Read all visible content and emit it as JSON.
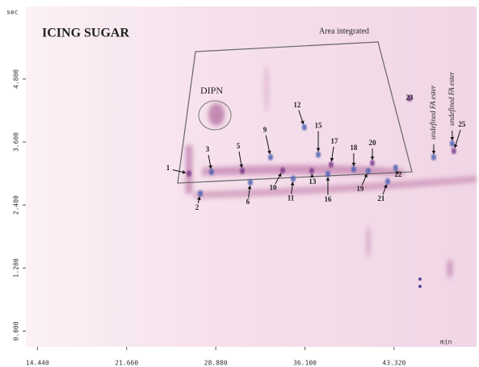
{
  "chart_data": {
    "type": "gcxgc",
    "title": "ICING SUGAR",
    "region_label": "Area integrated",
    "group_label": "DIPN",
    "x_label": "min",
    "y_label": "sec",
    "xlim": [
      13.5,
      50
    ],
    "ylim": [
      -0.3,
      6.15
    ],
    "xticks": [
      {
        "value": 14.44,
        "label": "14.440"
      },
      {
        "value": 21.66,
        "label": "21.660"
      },
      {
        "value": 28.88,
        "label": "28.880"
      },
      {
        "value": 36.1,
        "label": "36.100"
      },
      {
        "value": 43.32,
        "label": "43.320"
      }
    ],
    "yticks": [
      {
        "value": 0,
        "label": "0.000"
      },
      {
        "value": 1.2,
        "label": "1.200"
      },
      {
        "value": 2.4,
        "label": "2.400"
      },
      {
        "value": 3.6,
        "label": "3.600"
      },
      {
        "value": 4.8,
        "label": "4.800"
      }
    ],
    "peaks": [
      {
        "label": "1",
        "x": 26.71,
        "y": 3.0
      },
      {
        "label": "2",
        "x": 27.63,
        "y": 2.62
      },
      {
        "label": "3",
        "x": 28.54,
        "y": 3.03
      },
      {
        "label": "5",
        "x": 31.03,
        "y": 3.05
      },
      {
        "label": "6",
        "x": 31.68,
        "y": 2.83
      },
      {
        "label": "9",
        "x": 33.32,
        "y": 3.31
      },
      {
        "label": "10",
        "x": 34.3,
        "y": 3.06
      },
      {
        "label": "11",
        "x": 35.15,
        "y": 2.9
      },
      {
        "label": "12",
        "x": 36.06,
        "y": 3.88
      },
      {
        "label": "13",
        "x": 36.65,
        "y": 3.05
      },
      {
        "label": "15",
        "x": 37.18,
        "y": 3.36
      },
      {
        "label": "16",
        "x": 37.96,
        "y": 2.99
      },
      {
        "label": "17",
        "x": 38.22,
        "y": 3.17
      },
      {
        "label": "18",
        "x": 40.05,
        "y": 3.08
      },
      {
        "label": "19",
        "x": 41.23,
        "y": 3.05
      },
      {
        "label": "20",
        "x": 41.56,
        "y": 3.2
      },
      {
        "label": "21",
        "x": 42.8,
        "y": 2.85
      },
      {
        "label": "22",
        "x": 43.45,
        "y": 3.11
      },
      {
        "label": "23",
        "x": 44.57,
        "y": 4.43
      },
      {
        "label": "undefined FA ester",
        "x": 46.53,
        "y": 3.31
      },
      {
        "label": "undefined FA ester",
        "x": 48.03,
        "y": 3.57
      },
      {
        "label": "25",
        "x": 48.16,
        "y": 3.43
      }
    ]
  }
}
